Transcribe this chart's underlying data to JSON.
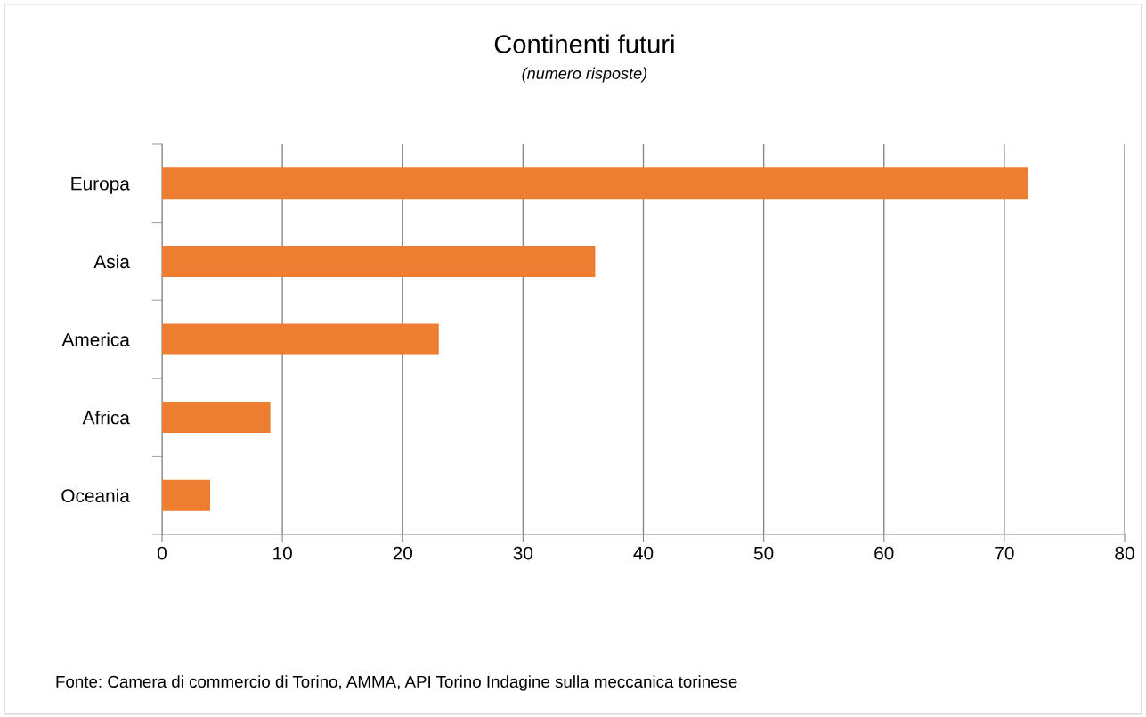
{
  "chart_data": {
    "type": "bar",
    "orientation": "horizontal",
    "title": "Continenti futuri",
    "subtitle": "(numero risposte)",
    "categories": [
      "Europa",
      "Asia",
      "America",
      "Africa",
      "Oceania"
    ],
    "values": [
      72,
      36,
      23,
      9,
      4
    ],
    "color": "#ed7d31",
    "xlim": [
      0,
      80
    ],
    "xticks": [
      0,
      10,
      20,
      30,
      40,
      50,
      60,
      70,
      80
    ],
    "grid": "x",
    "legend": false,
    "annotations": [
      "Fonte: Camera di commercio di Torino, AMMA, API Torino Indagine sulla meccanica torinese"
    ]
  }
}
